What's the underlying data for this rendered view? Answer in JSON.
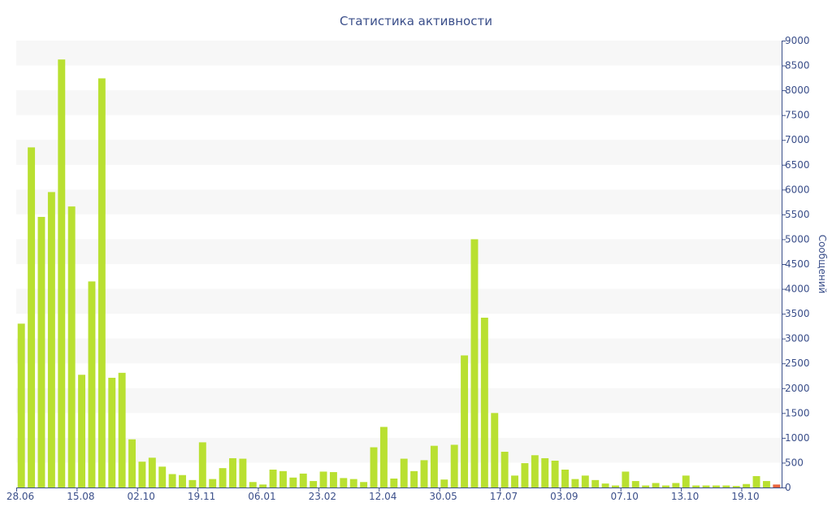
{
  "chart_data": {
    "type": "bar",
    "title": "Статистика активности",
    "xlabel": "",
    "ylabel": "Сообщений",
    "ylim": [
      0,
      9000
    ],
    "y_ticks": [
      0,
      500,
      1000,
      1500,
      2000,
      2500,
      3000,
      3500,
      4000,
      4500,
      5000,
      5500,
      6000,
      6500,
      7000,
      7500,
      8000,
      8500,
      9000
    ],
    "x_tick_labels": [
      "28.06",
      "15.08",
      "02.10",
      "19.11",
      "06.01",
      "23.02",
      "12.04",
      "30.05",
      "17.07",
      "03.09",
      "07.10",
      "13.10",
      "19.10"
    ],
    "x_tick_positions": [
      0,
      6,
      12,
      18,
      24,
      30,
      36,
      42,
      48,
      54,
      60,
      66,
      72
    ],
    "grid": "horizontal-bands",
    "y_axis_side": "right",
    "colors": {
      "bar": "#b9e031",
      "last_bar": "#e8643c",
      "text": "#3b4f8a",
      "band": "#f7f7f7"
    },
    "values": [
      3300,
      6850,
      5450,
      5950,
      8620,
      5660,
      2270,
      4150,
      8240,
      2210,
      2310,
      970,
      520,
      600,
      420,
      270,
      250,
      150,
      910,
      170,
      390,
      590,
      580,
      110,
      60,
      360,
      330,
      200,
      280,
      130,
      320,
      310,
      190,
      170,
      110,
      810,
      1220,
      180,
      580,
      330,
      550,
      840,
      160,
      860,
      2660,
      5000,
      3420,
      1500,
      720,
      240,
      490,
      650,
      590,
      540,
      360,
      170,
      240,
      150,
      80,
      40,
      320,
      130,
      40,
      90,
      40,
      90,
      240,
      40,
      40,
      40,
      40,
      30,
      70,
      230,
      130,
      60
    ]
  }
}
